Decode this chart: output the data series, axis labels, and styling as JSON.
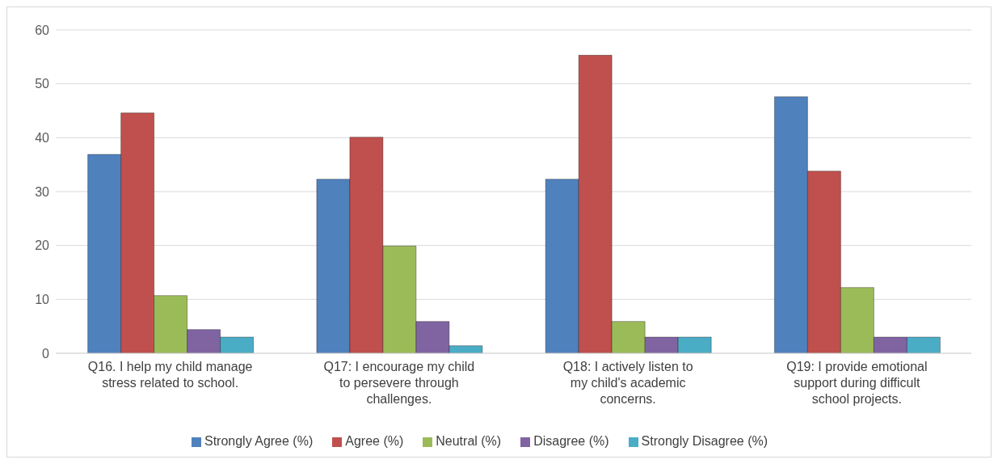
{
  "chart_data": {
    "type": "bar",
    "categories": [
      "Q16. I help my child manage stress related to school.",
      "Q17: I encourage my child to persevere through challenges.",
      "Q18: I actively listen to my child's academic concerns.",
      "Q19: I provide emotional support during difficult school projects."
    ],
    "series": [
      {
        "name": "Strongly Agree (%)",
        "color": "#4f81bd",
        "values": [
          36.9,
          32.3,
          32.3,
          47.6
        ]
      },
      {
        "name": "Agree (%)",
        "color": "#c0504d",
        "values": [
          44.6,
          40.1,
          55.3,
          33.8
        ]
      },
      {
        "name": "Neutral (%)",
        "color": "#9bbb59",
        "values": [
          10.7,
          19.9,
          5.9,
          12.2
        ]
      },
      {
        "name": "Disagree (%)",
        "color": "#8064a2",
        "values": [
          4.4,
          5.9,
          3.0,
          3.0
        ]
      },
      {
        "name": "Strongly Disagree (%)",
        "color": "#4bacc6",
        "values": [
          3.0,
          1.4,
          3.0,
          3.0
        ]
      }
    ],
    "ylim": [
      0,
      60
    ],
    "yticks": [
      0,
      10,
      20,
      30,
      40,
      50,
      60
    ],
    "grid": "y",
    "legend": "bottom"
  }
}
